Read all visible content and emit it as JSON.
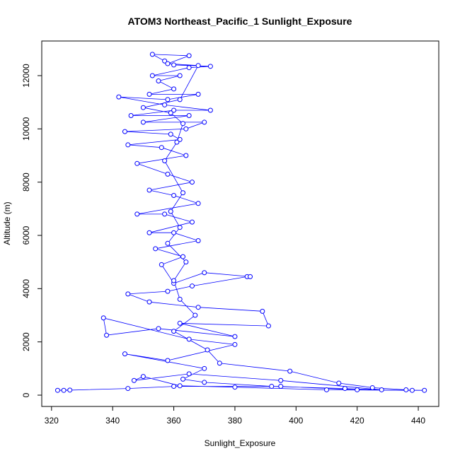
{
  "chart_data": {
    "type": "line",
    "title": "ATOM3 Northeast_Pacific_1 Sunlight_Exposure",
    "x_label": "Sunlight_Exposure",
    "y_label": "Altitude (m)",
    "xlim": [
      316.8,
      446.7
    ],
    "ylim": [
      -425,
      13301
    ],
    "xticks": [
      320,
      340,
      360,
      380,
      400,
      420,
      440
    ],
    "yticks": [
      0,
      2000,
      4000,
      6000,
      8000,
      10000,
      12000
    ],
    "series": [
      {
        "color": "#0000ff",
        "x": [
          322,
          326,
          324,
          345,
          360,
          395,
          420,
          442,
          438,
          410,
          380,
          362,
          350,
          347,
          365,
          395,
          428,
          416,
          392,
          370,
          363,
          370,
          344,
          358,
          380,
          365,
          337,
          338,
          355,
          380,
          362,
          391,
          389,
          368,
          352,
          345,
          358,
          366,
          384,
          385,
          370,
          360,
          356,
          363,
          354,
          368,
          360,
          352,
          366,
          357,
          348,
          368,
          360,
          352,
          366,
          358,
          348,
          364,
          356,
          345,
          362,
          359,
          344,
          364,
          370,
          350,
          365,
          346,
          360,
          372,
          357,
          342,
          358,
          368,
          352,
          360,
          355,
          362,
          353,
          365,
          372,
          360,
          357,
          353,
          365,
          358,
          368,
          362,
          350,
          359,
          363,
          361,
          357,
          363,
          359,
          362,
          358,
          364,
          360,
          362,
          367,
          360,
          371,
          375,
          398,
          414,
          425,
          436
        ],
        "values": [
          180,
          190,
          180,
          250,
          330,
          330,
          200,
          180,
          180,
          200,
          300,
          350,
          700,
          550,
          800,
          550,
          200,
          250,
          330,
          480,
          600,
          1000,
          1550,
          1300,
          1900,
          2100,
          2900,
          2250,
          2500,
          2200,
          2700,
          2600,
          3150,
          3300,
          3500,
          3800,
          3900,
          4100,
          4450,
          4450,
          4600,
          4200,
          4900,
          5200,
          5500,
          5800,
          6100,
          6100,
          6500,
          6800,
          6800,
          7200,
          7500,
          7700,
          8000,
          8300,
          8700,
          9000,
          9300,
          9400,
          9600,
          9800,
          9900,
          10000,
          10250,
          10250,
          10500,
          10500,
          10700,
          10700,
          10900,
          11200,
          11100,
          11300,
          11300,
          11500,
          11800,
          12000,
          12000,
          12300,
          12350,
          12400,
          12550,
          12800,
          12750,
          12450,
          12380,
          11100,
          10800,
          10600,
          10200,
          9500,
          8800,
          7600,
          6900,
          6300,
          5700,
          5000,
          4300,
          3600,
          3000,
          2400,
          1700,
          1200,
          900,
          450,
          280,
          200
        ]
      }
    ]
  }
}
